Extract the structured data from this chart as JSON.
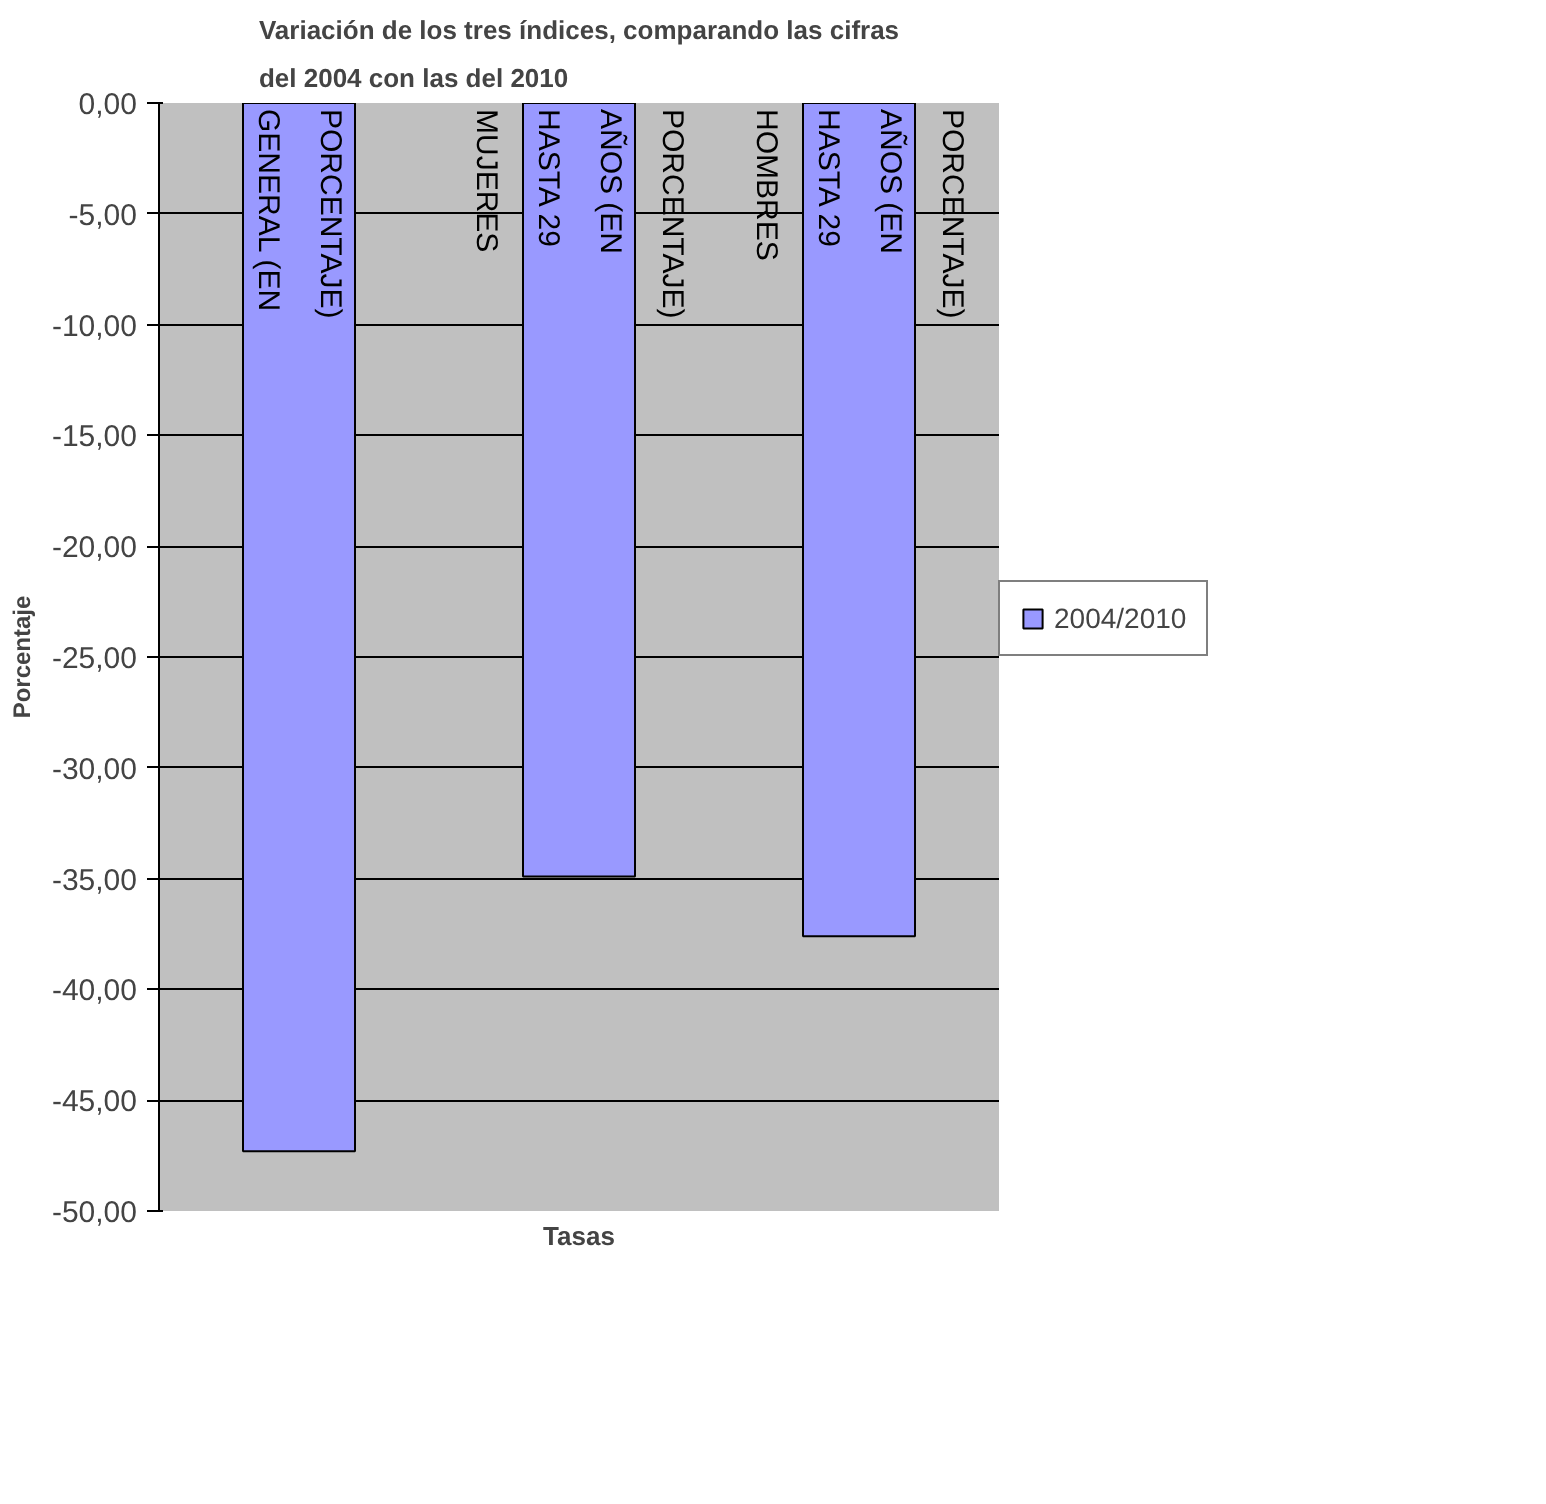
{
  "chart_data": {
    "type": "bar",
    "title": "Variación de los tres índices, comparando las cifras\ndel 2004 con las del 2010",
    "xlabel": "Tasas",
    "ylabel": "Porcentaje",
    "categories": [
      "GENERAL (EN PORCENTAJE)",
      "MUJERES HASTA 29 AÑOS (EN PORCENTAJE)",
      "HOMBRES HASTA 29 AÑOS (EN PORCENTAJE)"
    ],
    "series": [
      {
        "name": "2004/2010",
        "color": "#9999ff",
        "values": [
          -47.3,
          -34.9,
          -37.6
        ]
      }
    ],
    "ylim": [
      -50,
      0
    ],
    "yticks": [
      {
        "value": 0,
        "label": "0,00"
      },
      {
        "value": -5,
        "label": "-5,00"
      },
      {
        "value": -10,
        "label": "-10,00"
      },
      {
        "value": -15,
        "label": "-15,00"
      },
      {
        "value": -20,
        "label": "-20,00"
      },
      {
        "value": -25,
        "label": "-25,00"
      },
      {
        "value": -30,
        "label": "-30,00"
      },
      {
        "value": -35,
        "label": "-35,00"
      },
      {
        "value": -40,
        "label": "-40,00"
      },
      {
        "value": -45,
        "label": "-45,00"
      },
      {
        "value": -50,
        "label": "-50,00"
      }
    ],
    "grid": "y",
    "legend": "right"
  }
}
